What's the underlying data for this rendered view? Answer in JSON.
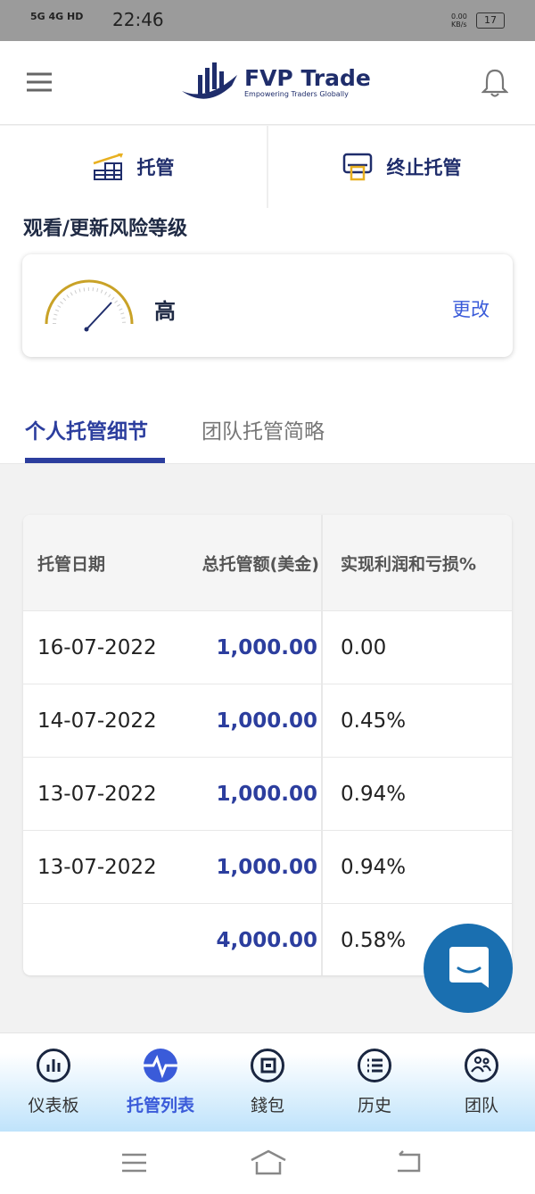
{
  "status_bar": {
    "network": "5G 4G HD",
    "time": "22:46",
    "speed": "0.00 KB/s",
    "battery": "17"
  },
  "header": {
    "brand": "FVP Trade",
    "tagline": "Empowering Traders Globally",
    "menu_icon": "hamburger-icon",
    "notification_icon": "bell-icon"
  },
  "actions": [
    {
      "label": "托管",
      "icon": "growth-chart-icon"
    },
    {
      "label": "终止托管",
      "icon": "terminate-card-icon"
    }
  ],
  "risk": {
    "title": "观看/更新风险等级",
    "level": "高",
    "change_label": "更改",
    "gauge_color": "#c9a227"
  },
  "tabs": [
    {
      "label": "个人托管细节",
      "active": true
    },
    {
      "label": "团队托管简略",
      "active": false
    }
  ],
  "table": {
    "headers": [
      "托管日期",
      "总托管额(美金)",
      "实现利润和亏损%"
    ],
    "rows": [
      [
        "16-07-2022",
        "1,000.00",
        "0.00"
      ],
      [
        "14-07-2022",
        "1,000.00",
        "0.45%"
      ],
      [
        "13-07-2022",
        "1,000.00",
        "0.94%"
      ],
      [
        "13-07-2022",
        "1,000.00",
        "0.94%"
      ],
      [
        "",
        "4,000.00",
        "0.58%"
      ]
    ]
  },
  "bottom_nav": [
    {
      "label": "仪表板",
      "icon": "dashboard-icon"
    },
    {
      "label": "托管列表",
      "icon": "pulse-icon",
      "active": true
    },
    {
      "label": "錢包",
      "icon": "wallet-icon"
    },
    {
      "label": "历史",
      "icon": "history-list-icon"
    },
    {
      "label": "团队",
      "icon": "team-icon"
    }
  ],
  "colors": {
    "primary": "#1f2d6b",
    "accent": "#3a5bd9",
    "chat": "#1a6fb0"
  }
}
